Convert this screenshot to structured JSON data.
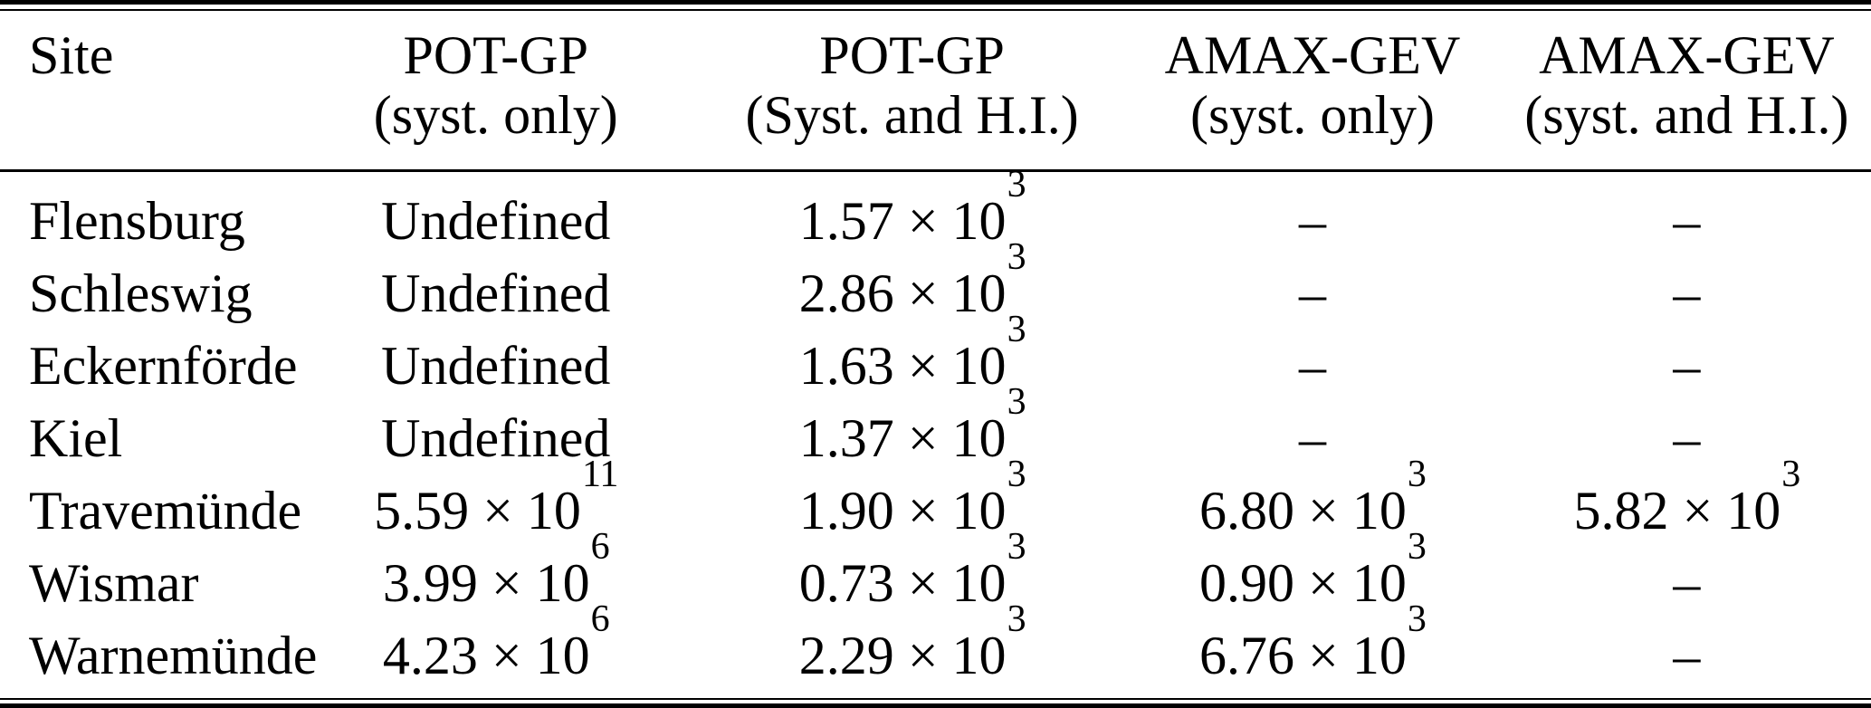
{
  "table": {
    "title": "Return period comparison table",
    "columns": [
      {
        "line1": "Site",
        "line2": ""
      },
      {
        "line1": "POT-GP",
        "line2": "(syst. only)"
      },
      {
        "line1": "POT-GP",
        "line2": "(Syst. and H.I.)"
      },
      {
        "line1": "AMAX-GEV",
        "line2": "(syst. only)"
      },
      {
        "line1": "AMAX-GEV",
        "line2": "(syst. and H.I.)"
      }
    ],
    "rows": [
      {
        "site": "Flensburg",
        "cells": [
          {
            "m": "Undefined",
            "e": ""
          },
          {
            "m": "1.57 × 10",
            "e": "3"
          },
          {
            "m": "–",
            "e": ""
          },
          {
            "m": "–",
            "e": ""
          }
        ]
      },
      {
        "site": "Schleswig",
        "cells": [
          {
            "m": "Undefined",
            "e": ""
          },
          {
            "m": "2.86 × 10",
            "e": "3"
          },
          {
            "m": "–",
            "e": ""
          },
          {
            "m": "–",
            "e": ""
          }
        ]
      },
      {
        "site": "Eckernförde",
        "cells": [
          {
            "m": "Undefined",
            "e": ""
          },
          {
            "m": "1.63 × 10",
            "e": "3"
          },
          {
            "m": "–",
            "e": ""
          },
          {
            "m": "–",
            "e": ""
          }
        ]
      },
      {
        "site": "Kiel",
        "cells": [
          {
            "m": "Undefined",
            "e": ""
          },
          {
            "m": "1.37 × 10",
            "e": "3"
          },
          {
            "m": "–",
            "e": ""
          },
          {
            "m": "–",
            "e": ""
          }
        ]
      },
      {
        "site": "Travemünde",
        "cells": [
          {
            "m": "5.59 × 10",
            "e": "11"
          },
          {
            "m": "1.90 × 10",
            "e": "3"
          },
          {
            "m": "6.80 × 10",
            "e": "3"
          },
          {
            "m": "5.82 × 10",
            "e": "3"
          }
        ]
      },
      {
        "site": "Wismar",
        "cells": [
          {
            "m": "3.99 × 10",
            "e": "6"
          },
          {
            "m": "0.73 × 10",
            "e": "3"
          },
          {
            "m": "0.90 × 10",
            "e": "3"
          },
          {
            "m": "–",
            "e": ""
          }
        ]
      },
      {
        "site": "Warnemünde",
        "cells": [
          {
            "m": "4.23 × 10",
            "e": "6"
          },
          {
            "m": "2.29 × 10",
            "e": "3"
          },
          {
            "m": "6.76 × 10",
            "e": "3"
          },
          {
            "m": "–",
            "e": ""
          }
        ]
      }
    ],
    "colors": {
      "text": "#000000",
      "background": "#ffffff",
      "rule": "#000000"
    }
  }
}
